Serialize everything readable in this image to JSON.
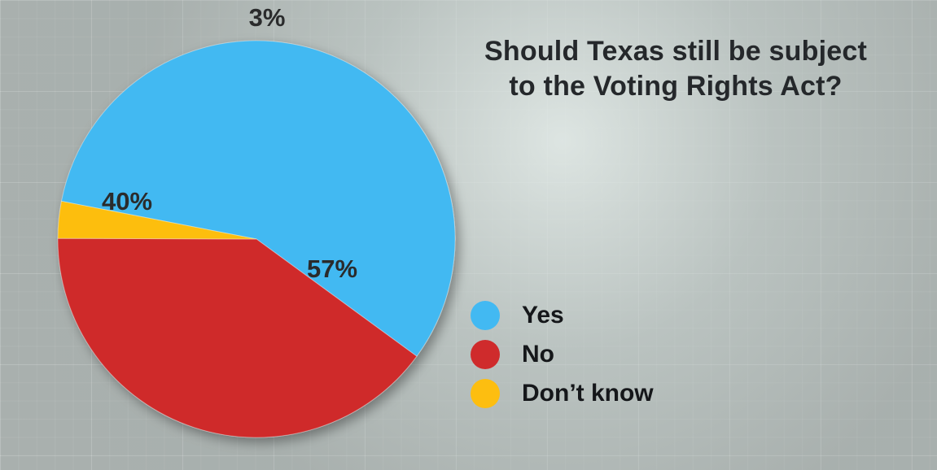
{
  "chart_data": {
    "type": "pie",
    "title_lines": [
      "Should Texas still be subject",
      "to the Voting Rights Act?"
    ],
    "slices": [
      {
        "label": "Yes",
        "value": 57,
        "value_label": "57%",
        "color": "#42b9f2"
      },
      {
        "label": "No",
        "value": 40,
        "value_label": "40%",
        "color": "#cf2b2c"
      },
      {
        "label": "Don’t know",
        "value": 3,
        "value_label": "3%",
        "color": "#fdbe10"
      }
    ],
    "legend_placement": "right"
  }
}
